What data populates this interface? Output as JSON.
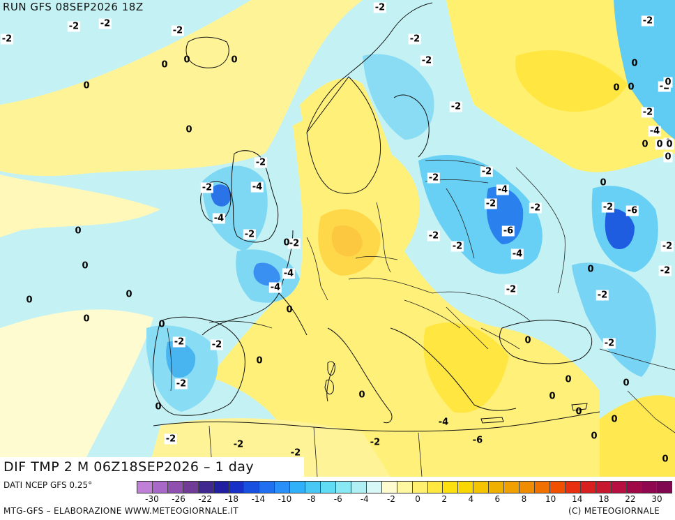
{
  "header": {
    "run_title": "RUN GFS 08SEP2026 18Z"
  },
  "map": {
    "title": "DIF TMP 2 M 06Z18SEP2026 – 1 day",
    "labels": [
      {
        "t": "-2",
        "name": "label-neg2-a"
      },
      {
        "t": "-2",
        "name": "label-neg2-b"
      },
      {
        "t": "-2",
        "name": "label-neg2-c"
      },
      {
        "t": "-2",
        "name": "label-neg2-d"
      },
      {
        "t": "-2",
        "name": "label-neg2-e"
      },
      {
        "t": "-2",
        "name": "label-neg2-f"
      },
      {
        "t": "0",
        "name": "label-0-a"
      },
      {
        "t": "0",
        "name": "label-0-b"
      },
      {
        "t": "0",
        "name": "label-0-c"
      },
      {
        "t": "0",
        "name": "label-0-d"
      },
      {
        "t": "0",
        "name": "label-0-e"
      },
      {
        "t": "-2",
        "name": "label-neg2-g"
      },
      {
        "t": "-2",
        "name": "label-neg2-h"
      },
      {
        "t": "-2",
        "name": "label-neg2-i"
      },
      {
        "t": "-2",
        "name": "label-neg2-j"
      },
      {
        "t": "-2",
        "name": "label-neg2-k"
      },
      {
        "t": "0",
        "name": "label-0-f"
      },
      {
        "t": "0",
        "name": "label-0-g"
      },
      {
        "t": "-2",
        "name": "label-neg2-l"
      },
      {
        "t": "-4",
        "name": "label-neg4-a"
      },
      {
        "t": "-2",
        "name": "label-neg2-m"
      },
      {
        "t": "-4",
        "name": "label-neg4-b"
      },
      {
        "t": "-4",
        "name": "label-neg4-c"
      },
      {
        "t": "-2",
        "name": "label-neg2-n"
      },
      {
        "t": "0",
        "name": "label-0-h"
      },
      {
        "t": "-2",
        "name": "label-neg2-o"
      },
      {
        "t": "0",
        "name": "label-0-i"
      },
      {
        "t": "0",
        "name": "label-0-j"
      },
      {
        "t": "-4",
        "name": "label-neg4-d"
      },
      {
        "t": "-4",
        "name": "label-neg4-e"
      },
      {
        "t": "0",
        "name": "label-0-k"
      },
      {
        "t": "0",
        "name": "label-0-l"
      },
      {
        "t": "0",
        "name": "label-0-m"
      },
      {
        "t": "0",
        "name": "label-0-n"
      },
      {
        "t": "-2",
        "name": "label-neg2-p"
      },
      {
        "t": "-2",
        "name": "label-neg2-q"
      },
      {
        "t": "-2",
        "name": "label-neg2-r"
      },
      {
        "t": "0",
        "name": "label-0-o"
      },
      {
        "t": "0",
        "name": "label-0-p"
      },
      {
        "t": "-2",
        "name": "label-neg2-s"
      },
      {
        "t": "0",
        "name": "label-0-q"
      },
      {
        "t": "0",
        "name": "label-0-r"
      },
      {
        "t": "-2",
        "name": "label-neg2-t"
      },
      {
        "t": "-2",
        "name": "label-neg2-u"
      },
      {
        "t": "-4",
        "name": "label-neg4-f"
      },
      {
        "t": "-2",
        "name": "label-neg2-v"
      },
      {
        "t": "-2",
        "name": "label-neg2-w"
      },
      {
        "t": "-6",
        "name": "label-neg6-a"
      },
      {
        "t": "-2",
        "name": "label-neg2-x"
      },
      {
        "t": "-4",
        "name": "label-neg4-g"
      },
      {
        "t": "-2",
        "name": "label-neg2-y"
      },
      {
        "t": "-2",
        "name": "label-neg2-z"
      },
      {
        "t": "0",
        "name": "label-0-s"
      },
      {
        "t": "-2",
        "name": "label-neg2-aa"
      },
      {
        "t": "-6",
        "name": "label-neg6-b"
      },
      {
        "t": "0",
        "name": "label-0-t"
      },
      {
        "t": "-2",
        "name": "label-neg2-ab"
      },
      {
        "t": "-2",
        "name": "label-neg2-ac"
      },
      {
        "t": "-2",
        "name": "label-neg2-ad"
      },
      {
        "t": "0",
        "name": "label-0-u"
      },
      {
        "t": "0",
        "name": "label-0-v"
      },
      {
        "t": "0",
        "name": "label-0-w"
      },
      {
        "t": "0",
        "name": "label-0-x"
      },
      {
        "t": "0",
        "name": "label-0-y"
      },
      {
        "t": "0",
        "name": "label-0-z"
      },
      {
        "t": "0",
        "name": "label-0-aa"
      },
      {
        "t": "-2",
        "name": "label-neg2-ae"
      },
      {
        "t": "-2",
        "name": "label-neg2-af"
      },
      {
        "t": "-2",
        "name": "label-neg2-ag"
      },
      {
        "t": "-2",
        "name": "label-neg2-ah"
      },
      {
        "t": "-4",
        "name": "label-neg4-h"
      },
      {
        "t": "-6",
        "name": "label-neg6-c"
      },
      {
        "t": "0",
        "name": "label-0-ab"
      },
      {
        "t": "0",
        "name": "label-0-ac"
      },
      {
        "t": "0",
        "name": "label-0-ad"
      },
      {
        "t": "0",
        "name": "label-0-ae"
      },
      {
        "t": "0",
        "name": "label-0-af"
      },
      {
        "t": "0",
        "name": "label-0-ag"
      },
      {
        "t": "0",
        "name": "label-0-ah"
      },
      {
        "t": "0",
        "name": "label-0-ai"
      }
    ]
  },
  "legend": {
    "source": "DATI NCEP GFS 0.25°",
    "tick_labels": [
      "-30",
      "-26",
      "-22",
      "-18",
      "-14",
      "-10",
      "-8",
      "-6",
      "-4",
      "-2",
      "0",
      "2",
      "4",
      "6",
      "8",
      "10",
      "14",
      "18",
      "22",
      "30"
    ],
    "colors": [
      "#c080d8",
      "#a868c8",
      "#9050b0",
      "#703c98",
      "#402890",
      "#2020a0",
      "#1830c8",
      "#1850e0",
      "#2070f0",
      "#2890f8",
      "#30b0f8",
      "#48c8f4",
      "#60dcf4",
      "#88e8f4",
      "#b0f0f4",
      "#d8f8f8",
      "#fffbd0",
      "#fff8a0",
      "#fff070",
      "#ffe840",
      "#fde010",
      "#f8d800",
      "#f4c400",
      "#f0b000",
      "#f0a000",
      "#f08c00",
      "#f07000",
      "#f05000",
      "#e83010",
      "#d82020",
      "#c81830",
      "#b81040",
      "#a00848",
      "#900850",
      "#800850"
    ]
  },
  "footer": {
    "credit_left": "MTG-GFS – ELABORAZIONE WWW.METEOGIORNALE.IT",
    "credit_right": "(C) METEOGIORNALE"
  }
}
